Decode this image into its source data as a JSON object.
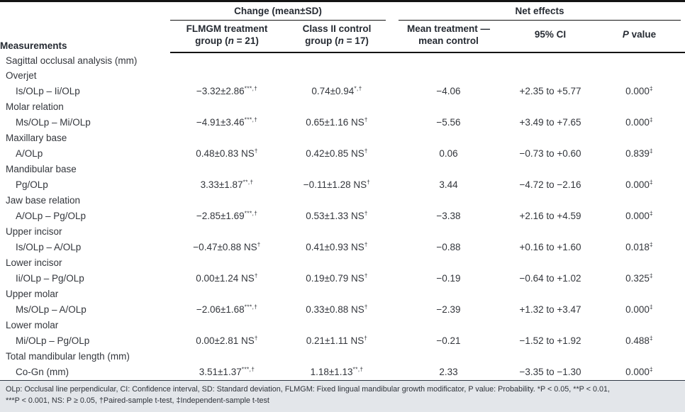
{
  "colors": {
    "rule": "#141414",
    "header_text": "#262b33",
    "body_text": "#33363c",
    "footnote_bg": "#e3e6ea",
    "footnote_border": "#2f3744"
  },
  "header": {
    "measurements": "Measurements",
    "change_group": "Change (mean±SD)",
    "net_effects_group": "Net effects",
    "col_flmgm": {
      "pre": "FLMGM treatment group (",
      "n": "n",
      "post": " = 21)"
    },
    "col_control": {
      "pre": "Class II control group (",
      "n": "n",
      "post": " = 17)"
    },
    "col_mean_diff": "Mean treatment — mean control",
    "col_ci": "95% CI",
    "col_p": {
      "italic": "P",
      "rest": " value"
    }
  },
  "rows": [
    {
      "type": "section",
      "label": "Sagittal occlusal analysis (mm)"
    },
    {
      "type": "section",
      "label": "Overjet"
    },
    {
      "type": "data",
      "label": "Is/OLp – Ii/OLp",
      "flmgm": {
        "main": "−3.32±2.86",
        "sup": "***,†"
      },
      "control": {
        "main": "0.74±0.94",
        "sup": "*,†"
      },
      "mean_diff": "−4.06",
      "ci": "+2.35 to +5.77",
      "p": {
        "main": "0.000",
        "sup": "‡"
      }
    },
    {
      "type": "section",
      "label": "Molar relation"
    },
    {
      "type": "data",
      "label": "Ms/OLp – Mi/OLp",
      "flmgm": {
        "main": "−4.91±3.46",
        "sup": "***,†"
      },
      "control": {
        "main": "0.65±1.16 NS",
        "sup": "†"
      },
      "mean_diff": "−5.56",
      "ci": "+3.49 to +7.65",
      "p": {
        "main": "0.000",
        "sup": "‡"
      }
    },
    {
      "type": "section",
      "label": "Maxillary base"
    },
    {
      "type": "data",
      "label": "A/OLp",
      "flmgm": {
        "main": "0.48±0.83 NS",
        "sup": "†"
      },
      "control": {
        "main": "0.42±0.85 NS",
        "sup": "†"
      },
      "mean_diff": "0.06",
      "ci": "−0.73 to +0.60",
      "p": {
        "main": "0.839",
        "sup": "‡"
      }
    },
    {
      "type": "section",
      "label": "Mandibular base"
    },
    {
      "type": "data",
      "label": "Pg/OLp",
      "flmgm": {
        "main": "3.33±1.87",
        "sup": "**,†"
      },
      "control": {
        "main": "−0.11±1.28 NS",
        "sup": "†"
      },
      "mean_diff": "3.44",
      "ci": "−4.72 to −2.16",
      "p": {
        "main": "0.000",
        "sup": "‡"
      }
    },
    {
      "type": "section",
      "label": "Jaw base relation"
    },
    {
      "type": "data",
      "label": "A/OLp – Pg/OLp",
      "flmgm": {
        "main": "−2.85±1.69",
        "sup": "***,†"
      },
      "control": {
        "main": "0.53±1.33 NS",
        "sup": "†"
      },
      "mean_diff": "−3.38",
      "ci": "+2.16 to +4.59",
      "p": {
        "main": "0.000",
        "sup": "‡"
      }
    },
    {
      "type": "section",
      "label": "Upper incisor"
    },
    {
      "type": "data",
      "label": "Is/OLp – A/OLp",
      "flmgm": {
        "main": "−0.47±0.88 NS",
        "sup": "†"
      },
      "control": {
        "main": "0.41±0.93 NS",
        "sup": "†"
      },
      "mean_diff": "−0.88",
      "ci": "+0.16 to +1.60",
      "p": {
        "main": "0.018",
        "sup": "‡"
      }
    },
    {
      "type": "section",
      "label": "Lower incisor"
    },
    {
      "type": "data",
      "label": "Ii/OLp – Pg/OLp",
      "flmgm": {
        "main": "0.00±1.24 NS",
        "sup": "†"
      },
      "control": {
        "main": "0.19±0.79 NS",
        "sup": "†"
      },
      "mean_diff": "−0.19",
      "ci": "−0.64 to +1.02",
      "p": {
        "main": "0.325",
        "sup": "‡"
      }
    },
    {
      "type": "section",
      "label": "Upper molar"
    },
    {
      "type": "data",
      "label": "Ms/OLp – A/OLp",
      "flmgm": {
        "main": "−2.06±1.68",
        "sup": "***,†"
      },
      "control": {
        "main": "0.33±0.88 NS",
        "sup": "†"
      },
      "mean_diff": "−2.39",
      "ci": "+1.32 to +3.47",
      "p": {
        "main": "0.000",
        "sup": "‡"
      }
    },
    {
      "type": "section",
      "label": "Lower molar"
    },
    {
      "type": "data",
      "label": "Mi/OLp – Pg/OLp",
      "flmgm": {
        "main": "0.00±2.81 NS",
        "sup": "†"
      },
      "control": {
        "main": "0.21±1.11 NS",
        "sup": "†"
      },
      "mean_diff": "−0.21",
      "ci": "−1.52 to +1.92",
      "p": {
        "main": "0.488",
        "sup": "‡"
      }
    },
    {
      "type": "section",
      "label": "Total mandibular length (mm)"
    },
    {
      "type": "data",
      "label": "Co-Gn (mm)",
      "flmgm": {
        "main": "3.51±1.37",
        "sup": "***,†"
      },
      "control": {
        "main": "1.18±1.13",
        "sup": "**,†"
      },
      "mean_diff": "2.33",
      "ci": "−3.35 to −1.30",
      "p": {
        "main": "0.000",
        "sup": "‡"
      }
    }
  ],
  "footnote": {
    "line1": "OLp: Occlusal line perpendicular, CI: Confidence interval, SD: Standard deviation, FLMGM: Fixed lingual mandibular growth modificator, P value: Probability. *P < 0.05, **P < 0.01,",
    "line2": "***P < 0.001, NS: P ≥ 0.05, †Paired-sample t-test, ‡Independent-sample t-test"
  }
}
